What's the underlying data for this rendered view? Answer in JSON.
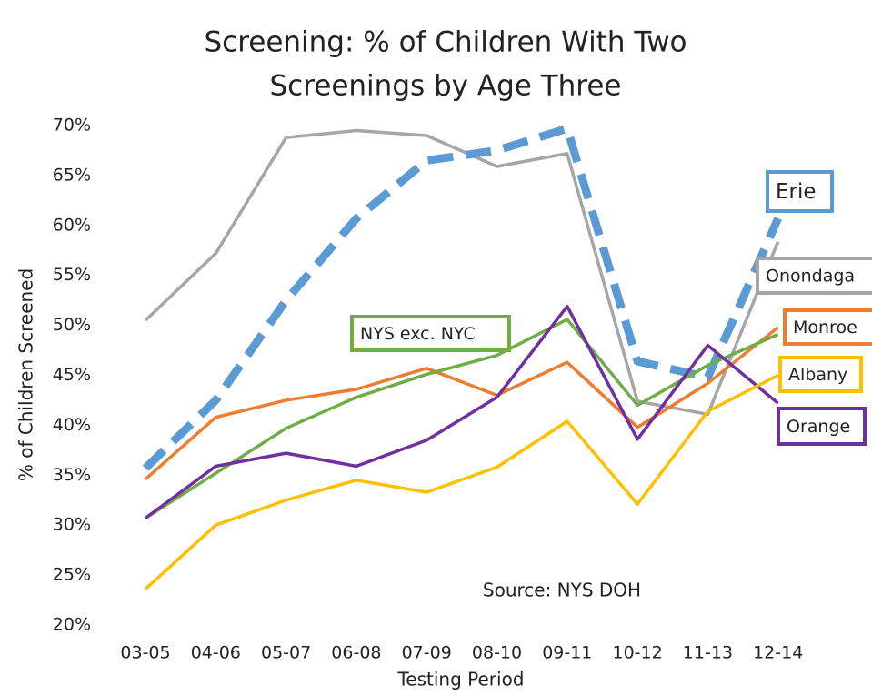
{
  "chart_data": {
    "type": "line",
    "title": [
      "Screening: % of Children With Two",
      "Screenings by Age Three"
    ],
    "x_label": "Testing Period",
    "y_label": "% of Children Screened",
    "annotation": "Source: NYS DOH",
    "categories": [
      "03-05",
      "04-06",
      "05-07",
      "06-08",
      "07-09",
      "08-10",
      "09-11",
      "10-12",
      "11-13",
      "12-14"
    ],
    "ylim": [
      20,
      70
    ],
    "yticks": [
      {
        "value": 20,
        "label": "20%"
      },
      {
        "value": 25,
        "label": "25%"
      },
      {
        "value": 30,
        "label": "30%"
      },
      {
        "value": 35,
        "label": "35%"
      },
      {
        "value": 40,
        "label": "40%"
      },
      {
        "value": 45,
        "label": "45%"
      },
      {
        "value": 50,
        "label": "50%"
      },
      {
        "value": 55,
        "label": "55%"
      },
      {
        "value": 60,
        "label": "60%"
      },
      {
        "value": 65,
        "label": "65%"
      },
      {
        "value": 70,
        "label": "70%"
      }
    ],
    "series": [
      {
        "name": "Onondaga",
        "color": "#a6a6a6",
        "values": [
          50.5,
          57.2,
          68.8,
          69.5,
          69.0,
          65.9,
          67.2,
          42.4,
          41.1,
          58.4
        ]
      },
      {
        "name": "Erie",
        "color": "#5b9bd5",
        "dashed": true,
        "values": [
          35.7,
          42.5,
          52.5,
          60.7,
          66.5,
          67.5,
          69.7,
          46.4,
          44.8,
          60.7
        ]
      },
      {
        "name": "Monroe",
        "color": "#ed7d31",
        "values": [
          34.6,
          40.8,
          42.5,
          43.6,
          45.7,
          43.0,
          46.3,
          39.8,
          44.2,
          49.8
        ]
      },
      {
        "name": "NYS exc. NYC",
        "color": "#70ad47",
        "values": [
          30.7,
          35.2,
          39.7,
          42.8,
          45.1,
          47.0,
          50.6,
          42.0,
          46.0,
          49.1
        ]
      },
      {
        "name": "Orange",
        "color": "#7030a0",
        "values": [
          30.7,
          35.9,
          37.2,
          35.9,
          38.5,
          42.8,
          51.9,
          38.6,
          48.0,
          42.2
        ]
      },
      {
        "name": "Albany",
        "color": "#ffc000",
        "values": [
          23.6,
          30.0,
          32.5,
          34.5,
          33.3,
          35.8,
          40.4,
          32.1,
          41.4,
          45.0
        ]
      }
    ]
  }
}
